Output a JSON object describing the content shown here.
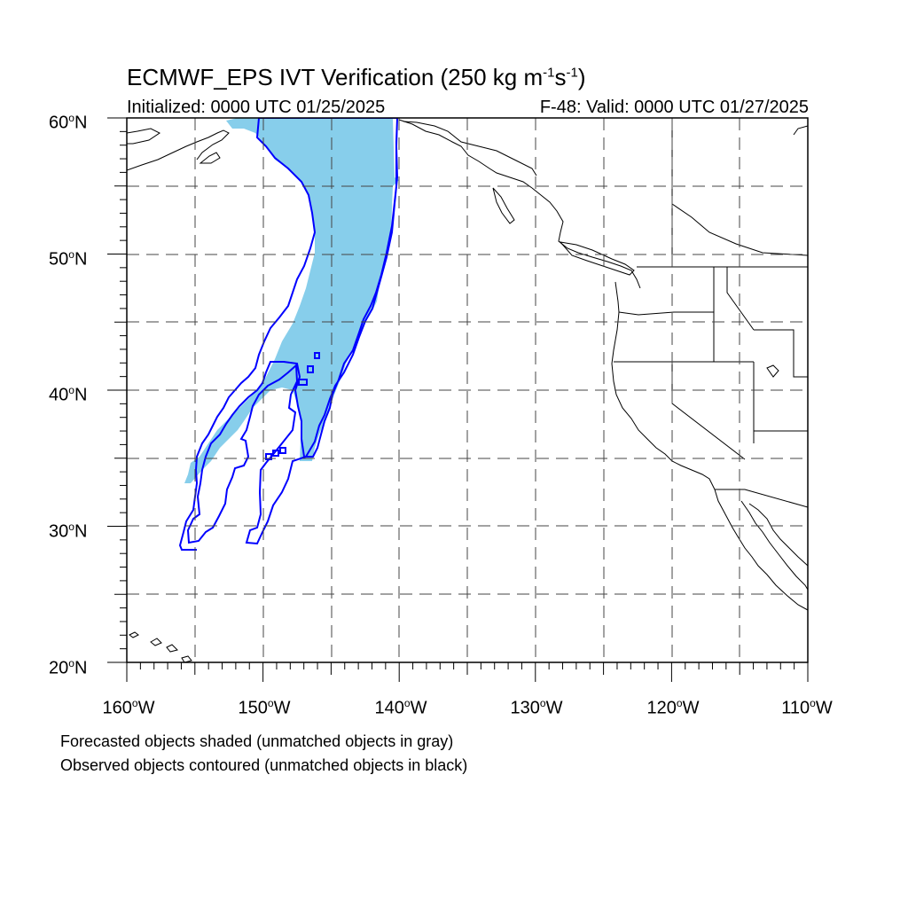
{
  "header": {
    "title_main": "ECMWF_EPS IVT Verification (250 kg m",
    "title_sup1": "-1",
    "title_mid": "s",
    "title_sup2": "-1",
    "title_end": ")",
    "initialized": "Initialized: 0000 UTC 01/25/2025",
    "valid": "F-48: Valid: 0000 UTC 01/27/2025"
  },
  "axes": {
    "lat_labels": [
      {
        "num": "60",
        "deg": "o",
        "hemi": "N"
      },
      {
        "num": "50",
        "deg": "o",
        "hemi": "N"
      },
      {
        "num": "40",
        "deg": "o",
        "hemi": "N"
      },
      {
        "num": "30",
        "deg": "o",
        "hemi": "N"
      },
      {
        "num": "20",
        "deg": "o",
        "hemi": "N"
      }
    ],
    "lon_labels": [
      {
        "num": "160",
        "deg": "o",
        "hemi": "W"
      },
      {
        "num": "150",
        "deg": "o",
        "hemi": "W"
      },
      {
        "num": "140",
        "deg": "o",
        "hemi": "W"
      },
      {
        "num": "130",
        "deg": "o",
        "hemi": "W"
      },
      {
        "num": "120",
        "deg": "o",
        "hemi": "W"
      },
      {
        "num": "110",
        "deg": "o",
        "hemi": "W"
      }
    ]
  },
  "legend_notes": {
    "forecast": "Forecasted objects shaded (unmatched objects in gray)",
    "observed": "Observed objects contoured (unmatched objects in black)"
  },
  "colors": {
    "forecast_fill": "#87ceeb",
    "observed_contour": "#0000ff",
    "coastline": "#000000",
    "gridline": "#444444"
  },
  "map": {
    "projection": "cylindrical equidistant",
    "lon_range": [
      -160,
      -110
    ],
    "lat_range": [
      20,
      60
    ],
    "grid": "dashed every 5 degrees"
  }
}
